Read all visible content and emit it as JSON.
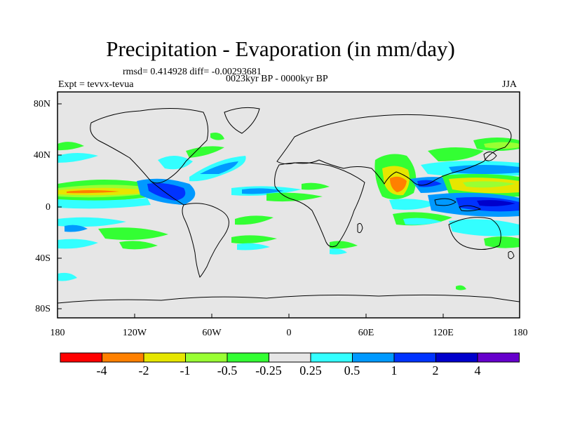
{
  "title": "Precipitation - Evaporation (in mm/day)",
  "stats_line": "rmsd= 0.414928 diff= -0.00293681",
  "period_line": "0023kyr BP - 0000kyr BP",
  "experiment": "Expt = tevvx-tevua",
  "season": "JJA",
  "map": {
    "background_color": "#e6e6e6",
    "lat_ticks": [
      "80N",
      "40N",
      "0",
      "40S",
      "80S"
    ],
    "lon_ticks": [
      "180",
      "120W",
      "60W",
      "0",
      "60E",
      "120E",
      "180"
    ]
  },
  "colorbar": {
    "colors": [
      "#ff0000",
      "#ff8000",
      "#e6e600",
      "#99ff33",
      "#33ff33",
      "#e6e6e6",
      "#33ffff",
      "#0099ff",
      "#0033ff",
      "#0000cc",
      "#6600cc"
    ],
    "labels": [
      "-4",
      "-2",
      "-1",
      "-0.5",
      "-0.25",
      "0.25",
      "0.5",
      "1",
      "2",
      "4"
    ]
  }
}
